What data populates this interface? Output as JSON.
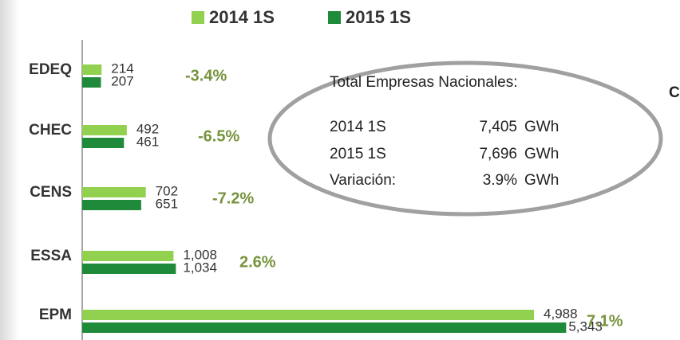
{
  "chart_data": {
    "type": "hbar",
    "categories": [
      "EDEQ",
      "CHEC",
      "CENS",
      "ESSA",
      "EPM"
    ],
    "series": [
      {
        "name": "2014 1S",
        "color": "#92d050",
        "values": [
          214,
          492,
          702,
          1008,
          4988
        ],
        "value_labels": [
          "214",
          "492",
          "702",
          "1,008",
          "4,988"
        ]
      },
      {
        "name": "2015 1S",
        "color": "#1e8a3a",
        "values": [
          207,
          461,
          651,
          1034,
          5343
        ],
        "value_labels": [
          "207",
          "461",
          "651",
          "1,034",
          "5,343"
        ]
      }
    ],
    "xlim": [
      0,
      6600
    ],
    "annotations": [
      "-3.4%",
      "-6.5%",
      "-7.2%",
      "2.6%",
      "7.1%"
    ],
    "summary": {
      "title": "Total Empresas Nacionales:",
      "rows": [
        [
          "2014 1S",
          "7,405",
          "GWh"
        ],
        [
          "2015 1S",
          "7,696",
          "GWh"
        ],
        [
          "Variación:",
          "3.9%",
          "GWh"
        ]
      ]
    },
    "cut_text": "C"
  }
}
